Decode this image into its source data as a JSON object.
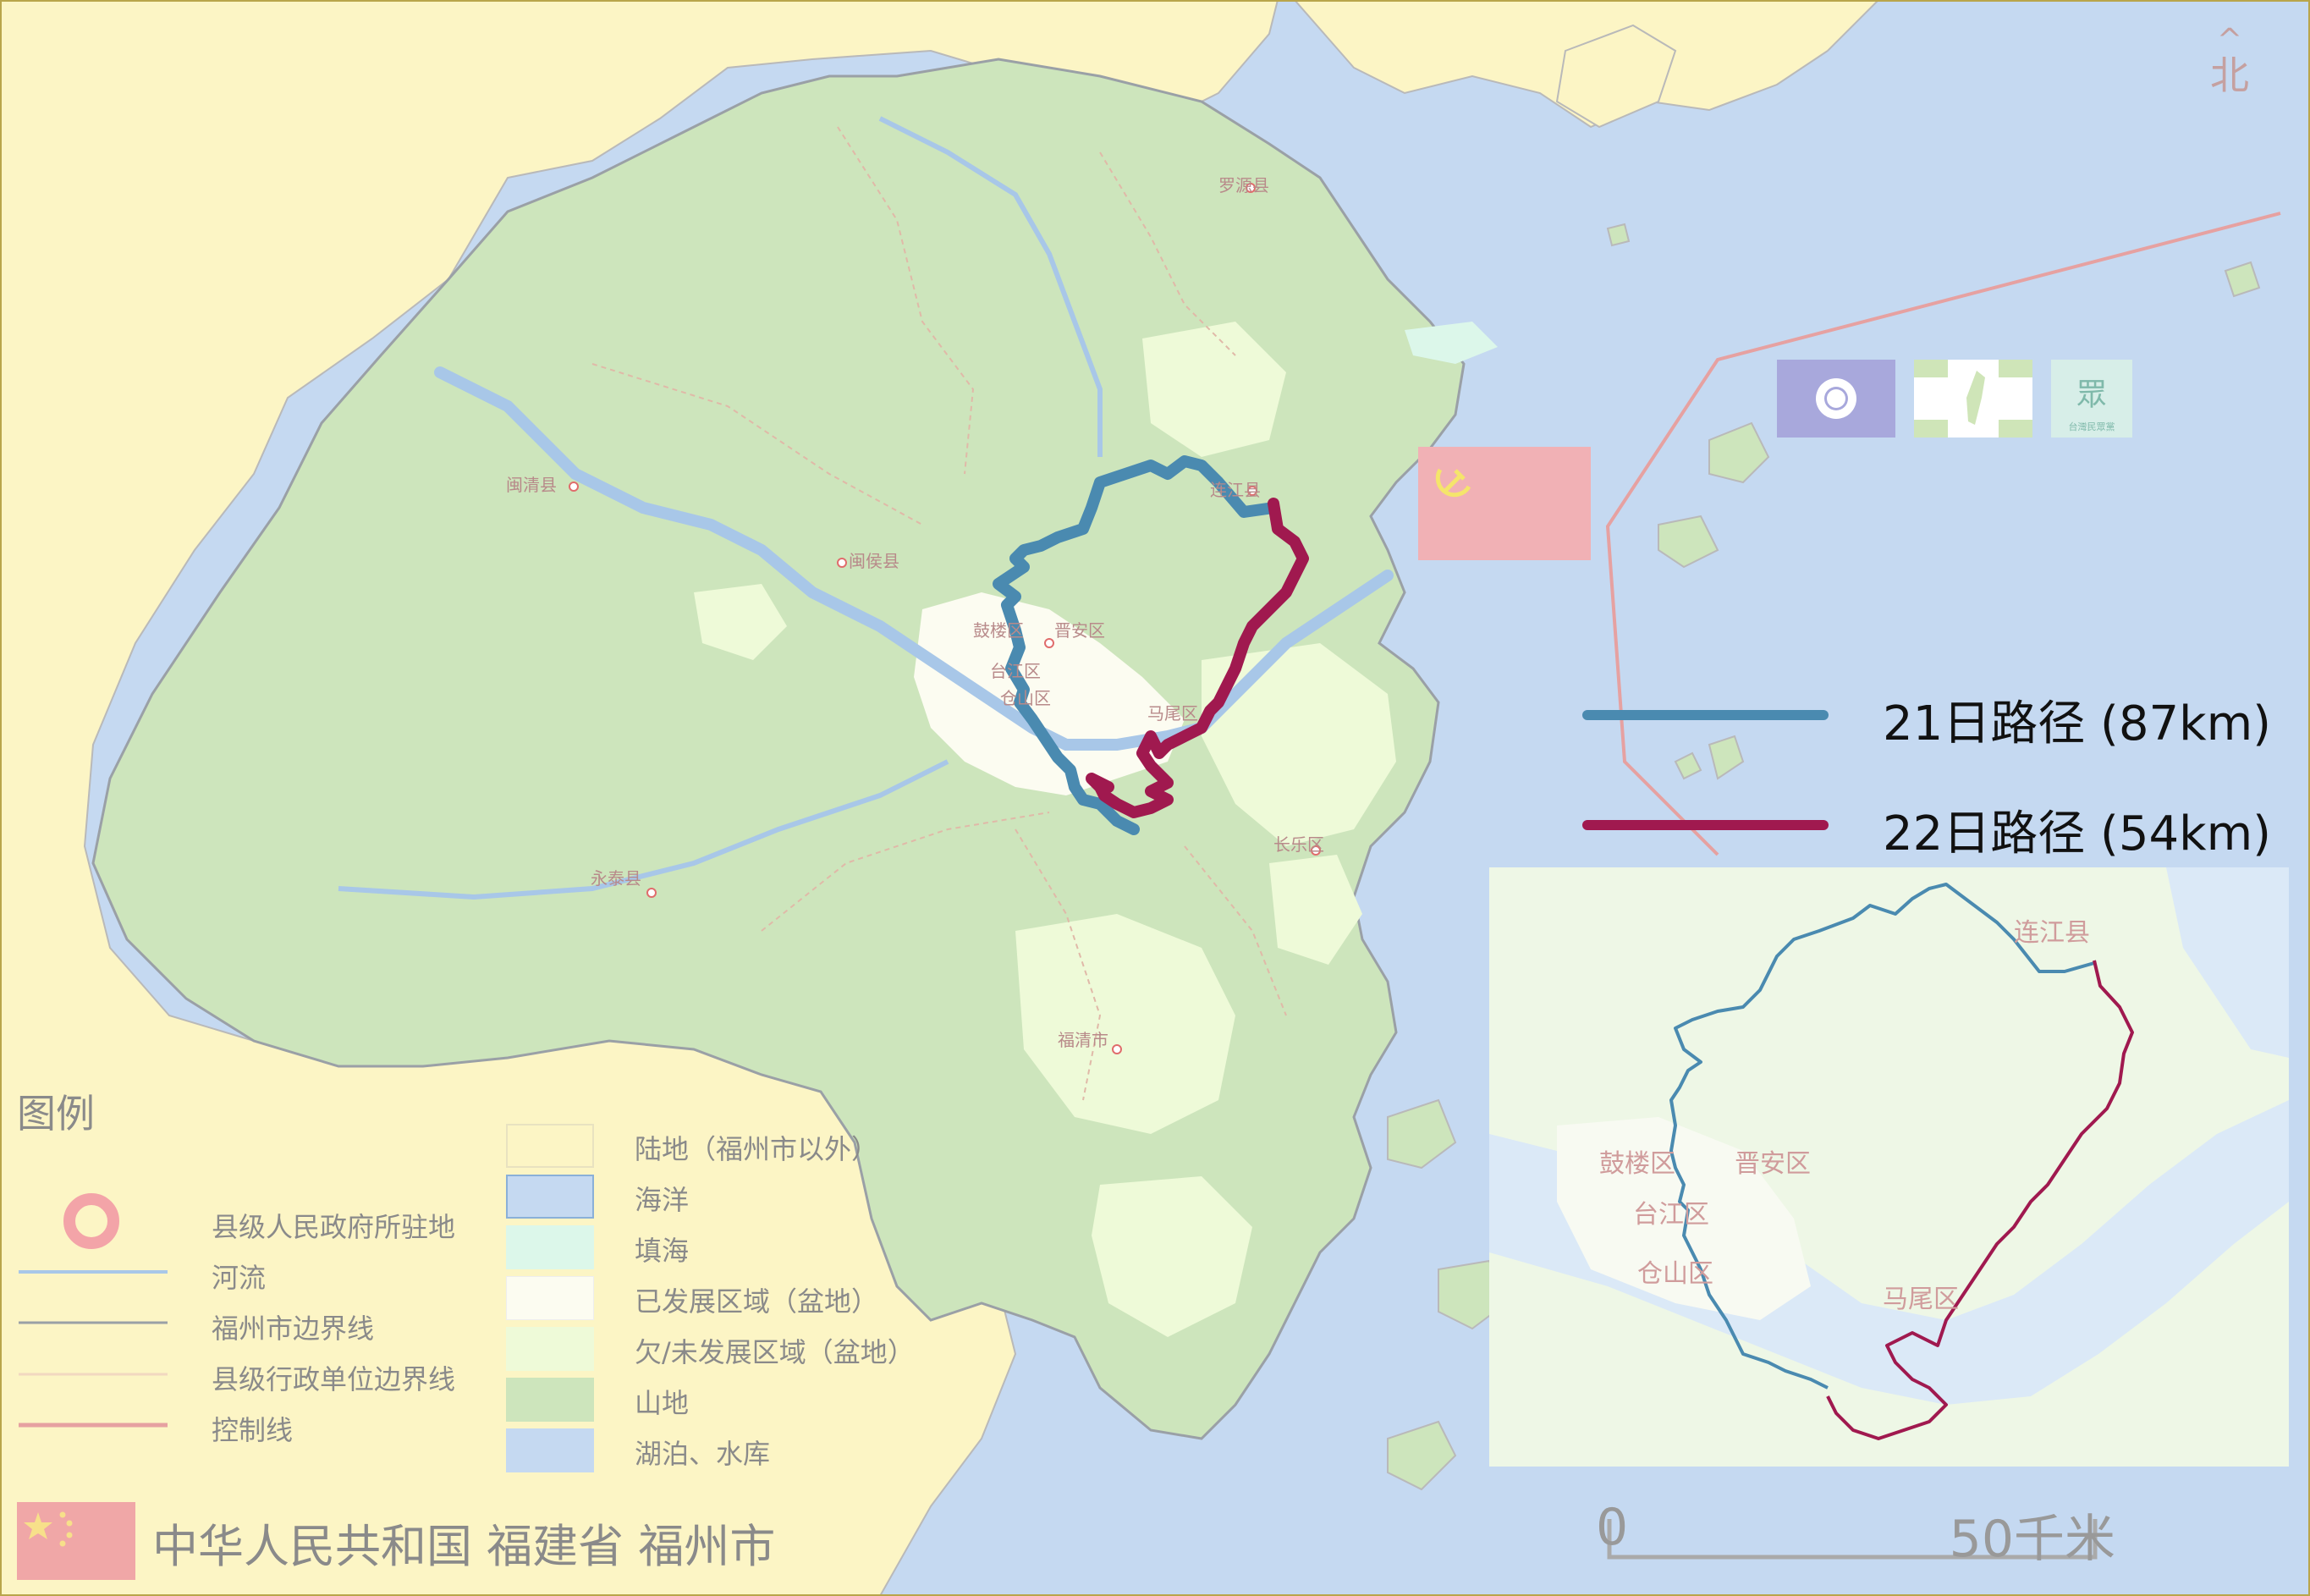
{
  "colors": {
    "sea": "#c5d9f1",
    "land_outside": "#fcf5c5",
    "mountain": "#cde5bc",
    "developed": "#fcfcf1",
    "underdeveloped": "#eefad8",
    "reclaimed": "#dcf7ea",
    "lake": "#c5d9f1",
    "river": "#a8c7e8",
    "route21": "#4a8ab0",
    "route22": "#a0194f",
    "control_line": "#e6a1a1",
    "cn_flag": "#f0a7a7",
    "ccp_flag": "#f1b1b5"
  },
  "north": {
    "arrow": "^",
    "label": "北"
  },
  "places": [
    {
      "id": "luoyuan",
      "label": "罗源县"
    },
    {
      "id": "minqing",
      "label": "闽清县"
    },
    {
      "id": "minhou",
      "label": "闽侯县"
    },
    {
      "id": "lianjiang",
      "label": "连江县"
    },
    {
      "id": "gulou",
      "label": "鼓楼区"
    },
    {
      "id": "jinan",
      "label": "晋安区"
    },
    {
      "id": "taijiang",
      "label": "台江区"
    },
    {
      "id": "cangshan",
      "label": "仓山区"
    },
    {
      "id": "mawei",
      "label": "马尾区"
    },
    {
      "id": "changle",
      "label": "长乐区"
    },
    {
      "id": "yongtai",
      "label": "永泰县"
    },
    {
      "id": "fuqing",
      "label": "福清市"
    }
  ],
  "inset_places": [
    {
      "id": "lianjiang",
      "label": "连江县"
    },
    {
      "id": "gulou",
      "label": "鼓楼区"
    },
    {
      "id": "jinan",
      "label": "晋安区"
    },
    {
      "id": "taijiang",
      "label": "台江区"
    },
    {
      "id": "cangshan",
      "label": "仓山区"
    },
    {
      "id": "mawei",
      "label": "马尾区"
    }
  ],
  "party_flags": [
    {
      "name": "kmt-flag",
      "text": ""
    },
    {
      "name": "dpp-flag",
      "text": ""
    },
    {
      "name": "tpp-flag",
      "text": "眾",
      "sub": "台灣民眾黨"
    }
  ],
  "routes": [
    {
      "id": "r21",
      "label": "21日路径 (87km)"
    },
    {
      "id": "r22",
      "label": "22日路径 (54km)"
    }
  ],
  "legend": {
    "title": "图例",
    "left_items": [
      {
        "id": "seat",
        "label": "县级人民政府所驻地"
      },
      {
        "id": "river",
        "label": "河流"
      },
      {
        "id": "city_border",
        "label": "福州市边界线"
      },
      {
        "id": "county_border",
        "label": "县级行政单位边界线"
      },
      {
        "id": "control",
        "label": "控制线"
      }
    ],
    "right_items": [
      {
        "id": "land",
        "label": "陆地（福州市以外）"
      },
      {
        "id": "sea",
        "label": "海洋"
      },
      {
        "id": "reclaim",
        "label": "填海"
      },
      {
        "id": "dev",
        "label": "已发展区域（盆地）"
      },
      {
        "id": "undev",
        "label": "欠/未发展区域（盆地）"
      },
      {
        "id": "mount",
        "label": "山地"
      },
      {
        "id": "lake",
        "label": "湖泊、水库"
      }
    ]
  },
  "scale": {
    "start": "0",
    "end": "50千米"
  },
  "title": "中华人民共和国 福建省 福州市"
}
